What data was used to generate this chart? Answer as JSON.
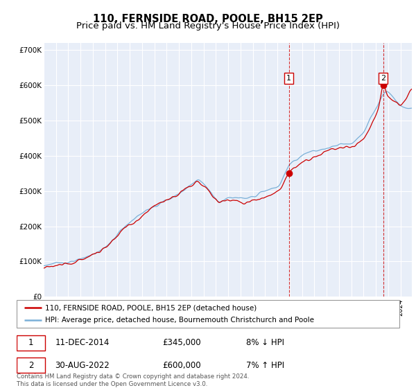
{
  "title": "110, FERNSIDE ROAD, POOLE, BH15 2EP",
  "subtitle": "Price paid vs. HM Land Registry's House Price Index (HPI)",
  "ylim": [
    0,
    720000
  ],
  "yticks": [
    0,
    100000,
    200000,
    300000,
    400000,
    500000,
    600000,
    700000
  ],
  "ytick_labels": [
    "£0",
    "£100K",
    "£200K",
    "£300K",
    "£400K",
    "£500K",
    "£600K",
    "£700K"
  ],
  "background_color": "#ffffff",
  "plot_bg_color": "#e8eef8",
  "grid_color": "#ffffff",
  "hpi_color": "#7ab0d8",
  "price_color": "#cc0000",
  "sale1_date": "11-DEC-2014",
  "sale1_price": "£345,000",
  "sale1_hpi": "8% ↓ HPI",
  "sale2_date": "30-AUG-2022",
  "sale2_price": "£600,000",
  "sale2_hpi": "7% ↑ HPI",
  "legend_line1": "110, FERNSIDE ROAD, POOLE, BH15 2EP (detached house)",
  "legend_line2": "HPI: Average price, detached house, Bournemouth Christchurch and Poole",
  "footer": "Contains HM Land Registry data © Crown copyright and database right 2024.\nThis data is licensed under the Open Government Licence v3.0.",
  "title_fontsize": 10.5,
  "subtitle_fontsize": 9.5
}
